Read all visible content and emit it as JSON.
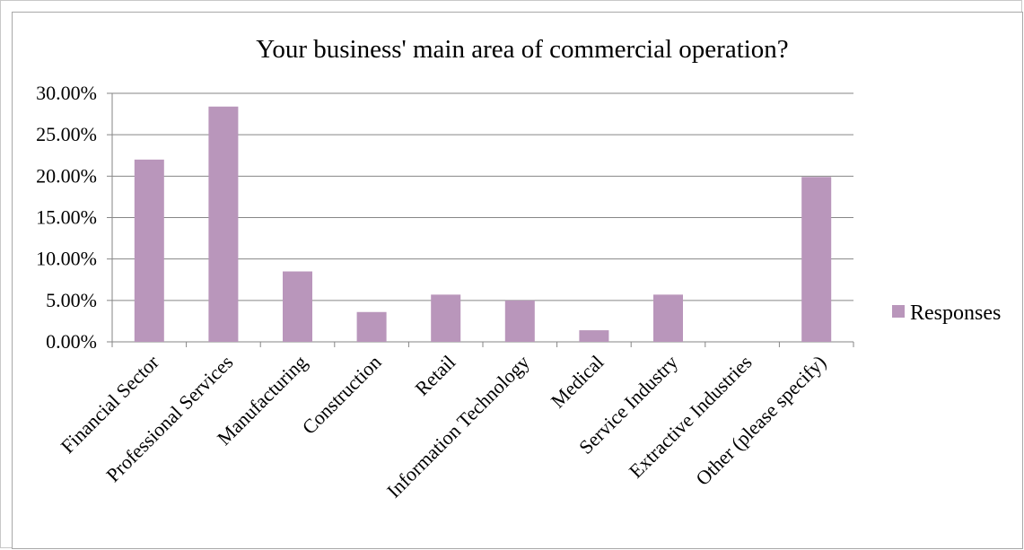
{
  "chart_data": {
    "type": "bar",
    "title": "Your business' main area of commercial operation?",
    "xlabel": "",
    "ylabel": "",
    "categories": [
      "Financial Sector",
      "Professional Services",
      "Manufacturing",
      "Construction",
      "Retail",
      "Information Technology",
      "Medical",
      "Service Industry",
      "Extractive Industries",
      "Other (please specify)"
    ],
    "series": [
      {
        "name": "Responses",
        "values": [
          22.0,
          28.4,
          8.5,
          3.6,
          5.7,
          5.0,
          1.4,
          5.7,
          0.0,
          19.9
        ],
        "color": "#b996bb"
      }
    ],
    "ylim": [
      0,
      30
    ],
    "yticks": [
      "0.00%",
      "5.00%",
      "10.00%",
      "15.00%",
      "20.00%",
      "25.00%",
      "30.00%"
    ],
    "grid": true,
    "legend": "right"
  }
}
